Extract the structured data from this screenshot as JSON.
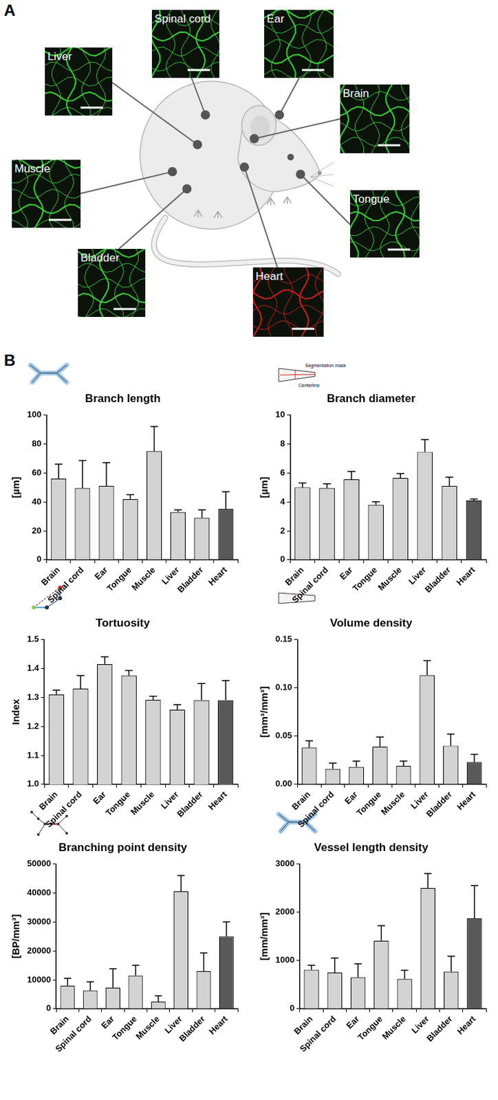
{
  "panel_labels": [
    "A",
    "B"
  ],
  "figure_a": {
    "images": [
      {
        "label": "Liver",
        "color": "#3ee03e"
      },
      {
        "label": "Spinal cord",
        "color": "#3ee03e"
      },
      {
        "label": "Ear",
        "color": "#3ee03e"
      },
      {
        "label": "Brain",
        "color": "#3ee03e"
      },
      {
        "label": "Muscle",
        "color": "#3ee03e"
      },
      {
        "label": "Tongue",
        "color": "#3ee03e"
      },
      {
        "label": "Bladder",
        "color": "#3ee03e"
      },
      {
        "label": "Heart",
        "color": "#e02020"
      }
    ]
  },
  "chart_data": [
    {
      "type": "bar",
      "title": "Branch length",
      "y_label": "[µm]",
      "categories": [
        "Brain",
        "Spinal cord",
        "Ear",
        "Tongue",
        "Muscle",
        "Liver",
        "Bladder",
        "Heart"
      ],
      "values": [
        56,
        49.5,
        51,
        42,
        75,
        33,
        29,
        35
      ],
      "errors": [
        10,
        19,
        16,
        3,
        17,
        1.5,
        5.5,
        12
      ],
      "colors": [
        "#d3d3d3",
        "#d3d3d3",
        "#d3d3d3",
        "#d3d3d3",
        "#d3d3d3",
        "#d3d3d3",
        "#d3d3d3",
        "#595959"
      ],
      "ylim": [
        0,
        100
      ],
      "yticks": [
        0,
        20,
        40,
        60,
        80,
        100
      ],
      "grid": false
    },
    {
      "type": "bar",
      "title": "Branch diameter",
      "y_label": "[µm]",
      "annotations": [
        "Segmentation mask",
        "Centerline"
      ],
      "categories": [
        "Brain",
        "Spinal cord",
        "Ear",
        "Tongue",
        "Muscle",
        "Liver",
        "Bladder",
        "Heart"
      ],
      "values": [
        5.0,
        4.95,
        5.55,
        3.8,
        5.65,
        7.45,
        5.1,
        4.1
      ],
      "errors": [
        0.3,
        0.3,
        0.55,
        0.2,
        0.3,
        0.85,
        0.6,
        0.1
      ],
      "colors": [
        "#d3d3d3",
        "#d3d3d3",
        "#d3d3d3",
        "#d3d3d3",
        "#d3d3d3",
        "#d3d3d3",
        "#d3d3d3",
        "#595959"
      ],
      "ylim": [
        0,
        10
      ],
      "yticks": [
        0,
        2,
        4,
        6,
        8,
        10
      ],
      "grid": false
    },
    {
      "type": "bar",
      "title": "Tortuosity",
      "y_label": "Index",
      "categories": [
        "Brain",
        "Spinal cord",
        "Ear",
        "Tongue",
        "Muscle",
        "Liver",
        "Bladder",
        "Heart"
      ],
      "values": [
        1.31,
        1.33,
        1.415,
        1.375,
        1.292,
        1.257,
        1.29,
        1.29
      ],
      "errors": [
        0.015,
        0.045,
        0.025,
        0.018,
        0.012,
        0.018,
        0.058,
        0.068
      ],
      "colors": [
        "#d3d3d3",
        "#d3d3d3",
        "#d3d3d3",
        "#d3d3d3",
        "#d3d3d3",
        "#d3d3d3",
        "#d3d3d3",
        "#595959"
      ],
      "ylim": [
        1.0,
        1.5
      ],
      "yticks": [
        {
          "value": 1.0,
          "label": "1.0"
        },
        1.1,
        1.2,
        1.3,
        1.4,
        1.5
      ],
      "grid": false
    },
    {
      "type": "bar",
      "title": "Volume density",
      "y_label": "[mm³/mm³]",
      "categories": [
        "Brain",
        "Spinal cord",
        "Ear",
        "Tongue",
        "Muscle",
        "Liver",
        "Bladder",
        "Heart"
      ],
      "values": [
        0.038,
        0.016,
        0.018,
        0.039,
        0.019,
        0.113,
        0.04,
        0.023
      ],
      "errors": [
        0.007,
        0.006,
        0.006,
        0.01,
        0.005,
        0.015,
        0.012,
        0.008
      ],
      "colors": [
        "#d3d3d3",
        "#d3d3d3",
        "#d3d3d3",
        "#d3d3d3",
        "#d3d3d3",
        "#d3d3d3",
        "#d3d3d3",
        "#595959"
      ],
      "ylim": [
        0,
        0.15
      ],
      "yticks": [
        {
          "value": 0,
          "label": "0.00"
        },
        0.05,
        {
          "value": 0.1,
          "label": "0.10"
        },
        0.15
      ],
      "grid": false
    },
    {
      "type": "bar",
      "title": "Branching point density",
      "y_label": "[BP/mm³]",
      "categories": [
        "Brain",
        "Spinal cord",
        "Ear",
        "Tongue",
        "Muscle",
        "Liver",
        "Bladder",
        "Heart"
      ],
      "values": [
        8000,
        6300,
        7300,
        11500,
        2500,
        40500,
        13000,
        25000
      ],
      "errors": [
        2500,
        3000,
        6500,
        3500,
        2000,
        5500,
        6300,
        5000
      ],
      "colors": [
        "#d3d3d3",
        "#d3d3d3",
        "#d3d3d3",
        "#d3d3d3",
        "#d3d3d3",
        "#d3d3d3",
        "#d3d3d3",
        "#595959"
      ],
      "ylim": [
        0,
        50000
      ],
      "yticks": [
        0,
        10000,
        20000,
        30000,
        40000,
        50000
      ],
      "grid": false
    },
    {
      "type": "bar",
      "title": "Vessel length density",
      "y_label": "[mm/mm³]",
      "categories": [
        "Brain",
        "Spinal cord",
        "Ear",
        "Tongue",
        "Muscle",
        "Liver",
        "Bladder",
        "Heart"
      ],
      "values": [
        810,
        750,
        650,
        1410,
        620,
        2500,
        770,
        1870
      ],
      "errors": [
        90,
        300,
        280,
        310,
        180,
        300,
        320,
        680
      ],
      "colors": [
        "#d3d3d3",
        "#d3d3d3",
        "#d3d3d3",
        "#d3d3d3",
        "#d3d3d3",
        "#d3d3d3",
        "#d3d3d3",
        "#595959"
      ],
      "ylim": [
        0,
        3000
      ],
      "yticks": [
        0,
        1000,
        2000,
        3000
      ],
      "grid": false
    }
  ]
}
